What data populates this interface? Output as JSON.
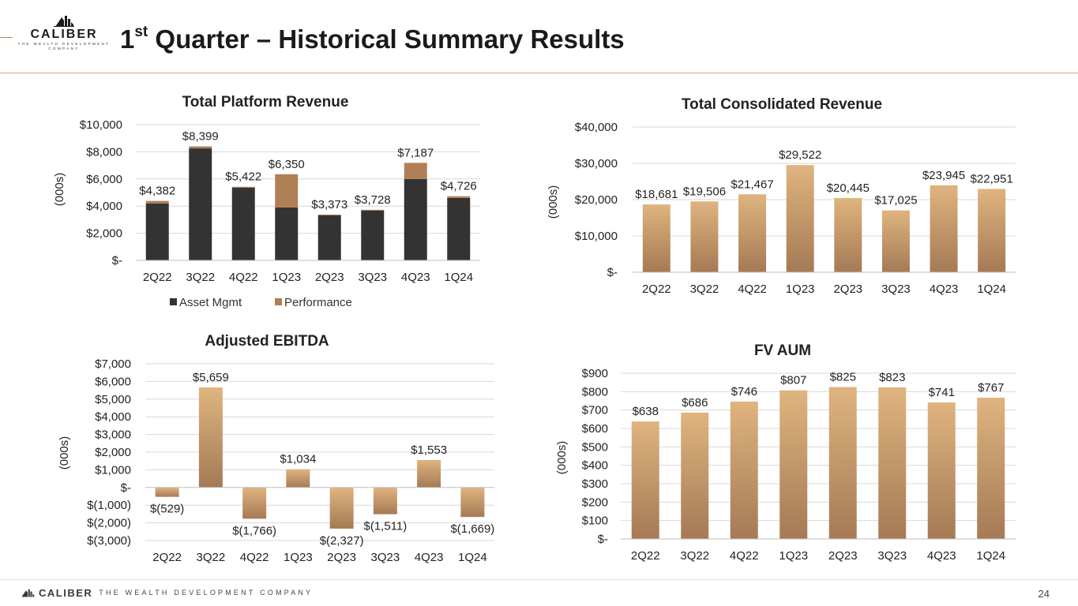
{
  "header": {
    "logo_word": "CALIBER",
    "logo_tagline": "THE WEALTH DEVELOPMENT COMPANY",
    "title_prefix": "1",
    "title_sup": "st",
    "title_rest": " Quarter – Historical Summary Results"
  },
  "footer": {
    "brand": "CALIBER",
    "tagline": "THE WEALTH DEVELOPMENT COMPANY",
    "page_number": "24"
  },
  "colors": {
    "asset_mgmt": "#333333",
    "performance": "#b07f55",
    "gradient_top": "#dfb47f",
    "gradient_bottom": "#a57a55",
    "gridline": "#d9d9d9",
    "axis": "#bfbfbf"
  },
  "chart_data": [
    {
      "id": "platform",
      "type": "bar",
      "stacked": true,
      "title": "Total Platform Revenue",
      "ylabel": "(000s)",
      "xlabel": "",
      "categories": [
        "2Q22",
        "3Q22",
        "4Q22",
        "1Q23",
        "2Q23",
        "3Q23",
        "4Q23",
        "1Q24"
      ],
      "series": [
        {
          "name": "Asset Mgmt",
          "values": [
            4200,
            8250,
            5350,
            3900,
            3330,
            3680,
            6000,
            4600
          ]
        },
        {
          "name": "Performance",
          "values": [
            182,
            149,
            72,
            2450,
            43,
            48,
            1187,
            126
          ]
        }
      ],
      "data_labels": [
        "$4,382",
        "$8,399",
        "$5,422",
        "$6,350",
        "$3,373",
        "$3,728",
        "$7,187",
        "$4,726"
      ],
      "ylim": [
        0,
        10000
      ],
      "yticks": [
        0,
        2000,
        4000,
        6000,
        8000,
        10000
      ],
      "ytick_labels": [
        "$-",
        "$2,000",
        "$4,000",
        "$6,000",
        "$8,000",
        "$10,000"
      ],
      "grid": true,
      "legend": "bottom"
    },
    {
      "id": "consolidated",
      "type": "bar",
      "title": "Total Consolidated Revenue",
      "ylabel": "(000s)",
      "xlabel": "",
      "categories": [
        "2Q22",
        "3Q22",
        "4Q22",
        "1Q23",
        "2Q23",
        "3Q23",
        "4Q23",
        "1Q24"
      ],
      "values": [
        18681,
        19506,
        21467,
        29522,
        20445,
        17025,
        23945,
        22951
      ],
      "data_labels": [
        "$18,681",
        "$19,506",
        "$21,467",
        "$29,522",
        "$20,445",
        "$17,025",
        "$23,945",
        "$22,951"
      ],
      "ylim": [
        0,
        40000
      ],
      "yticks": [
        0,
        10000,
        20000,
        30000,
        40000
      ],
      "ytick_labels": [
        "$-",
        "$10,000",
        "$20,000",
        "$30,000",
        "$40,000"
      ],
      "grid": true,
      "legend": "none"
    },
    {
      "id": "ebitda",
      "type": "bar",
      "title": "Adjusted EBITDA",
      "ylabel": "(000s)",
      "xlabel": "",
      "categories": [
        "2Q22",
        "3Q22",
        "4Q22",
        "1Q23",
        "2Q23",
        "3Q23",
        "4Q23",
        "1Q24"
      ],
      "values": [
        -529,
        5659,
        -1766,
        1034,
        -2327,
        -1511,
        1553,
        -1669
      ],
      "data_labels": [
        "$(529)",
        "$5,659",
        "$(1,766)",
        "$1,034",
        "$(2,327)",
        "$(1,511)",
        "$1,553",
        "$(1,669)"
      ],
      "ylim": [
        -3000,
        7000
      ],
      "yticks": [
        -3000,
        -2000,
        -1000,
        0,
        1000,
        2000,
        3000,
        4000,
        5000,
        6000,
        7000
      ],
      "ytick_labels": [
        "$(3,000)",
        "$(2,000)",
        "$(1,000)",
        "$-",
        "$1,000",
        "$2,000",
        "$3,000",
        "$4,000",
        "$5,000",
        "$6,000",
        "$7,000"
      ],
      "grid": true,
      "legend": "none"
    },
    {
      "id": "aum",
      "type": "bar",
      "title": "FV AUM",
      "ylabel": "(000s)",
      "xlabel": "",
      "categories": [
        "2Q22",
        "3Q22",
        "4Q22",
        "1Q23",
        "2Q23",
        "3Q23",
        "4Q23",
        "1Q24"
      ],
      "values": [
        638,
        686,
        746,
        807,
        825,
        823,
        741,
        767
      ],
      "data_labels": [
        "$638",
        "$686",
        "$746",
        "$807",
        "$825",
        "$823",
        "$741",
        "$767"
      ],
      "ylim": [
        0,
        900
      ],
      "yticks": [
        0,
        100,
        200,
        300,
        400,
        500,
        600,
        700,
        800,
        900
      ],
      "ytick_labels": [
        "$-",
        "$100",
        "$200",
        "$300",
        "$400",
        "$500",
        "$600",
        "$700",
        "$800",
        "$900"
      ],
      "grid": true,
      "legend": "none"
    }
  ]
}
